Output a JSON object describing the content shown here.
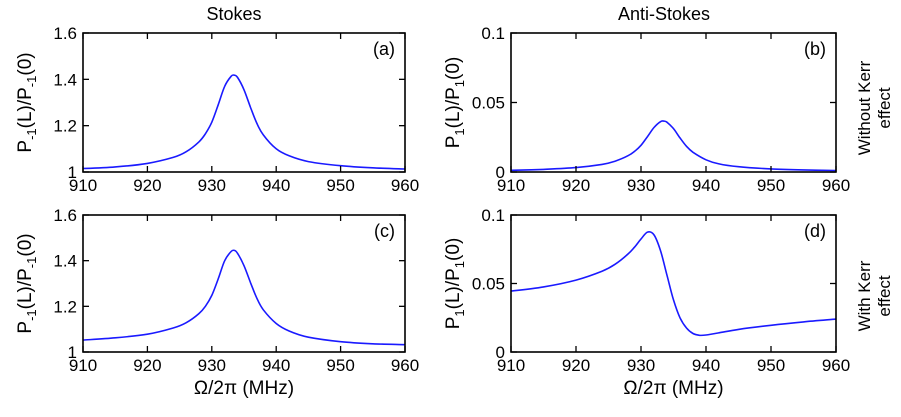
{
  "figure": {
    "column_titles": [
      "Stokes",
      "Anti-Stokes"
    ],
    "row_labels": [
      [
        "Without Kerr",
        "effect"
      ],
      [
        "With Kerr",
        "effect"
      ]
    ],
    "colors": {
      "curve": "#1a1aff",
      "axes": "#000000",
      "background": "#ffffff"
    }
  },
  "chart_data": [
    {
      "type": "line",
      "panel_label": "(a)",
      "xlabel": "",
      "ylabel": {
        "base": "P",
        "sub1": "-1",
        "mid": "(L)/P",
        "sub2": "-1",
        "end": "(0)"
      },
      "xlim": [
        910,
        960
      ],
      "ylim": [
        1,
        1.6
      ],
      "xticks": [
        910,
        920,
        930,
        940,
        950,
        960
      ],
      "xtick_labels": [
        "910",
        "920",
        "930",
        "940",
        "950",
        "960"
      ],
      "yticks": [
        1,
        1.2,
        1.4,
        1.6
      ],
      "ytick_labels": [
        "1",
        "1.2",
        "1.4",
        "1.6"
      ],
      "grid": false,
      "series": [
        {
          "x": [
            910,
            915,
            920,
            924,
            926,
            928,
            929,
            930,
            931,
            932,
            933,
            933.5,
            934,
            935,
            936,
            937,
            938,
            940,
            942,
            945,
            950,
            955,
            960
          ],
          "y": [
            1.015,
            1.022,
            1.037,
            1.063,
            1.087,
            1.13,
            1.165,
            1.215,
            1.29,
            1.37,
            1.413,
            1.418,
            1.408,
            1.355,
            1.28,
            1.21,
            1.16,
            1.1,
            1.07,
            1.045,
            1.027,
            1.018,
            1.013
          ]
        }
      ]
    },
    {
      "type": "line",
      "panel_label": "(b)",
      "xlabel": "",
      "ylabel": {
        "base": "P",
        "sub1": "1",
        "mid": "(L)/P",
        "sub2": "1",
        "end": "(0)"
      },
      "xlim": [
        910,
        960
      ],
      "ylim": [
        0,
        0.1
      ],
      "xticks": [
        910,
        920,
        930,
        940,
        950,
        960
      ],
      "xtick_labels": [
        "910",
        "920",
        "930",
        "940",
        "950",
        "960"
      ],
      "yticks": [
        0,
        0.05,
        0.1
      ],
      "ytick_labels": [
        "0",
        "0.05",
        "0.1"
      ],
      "grid": false,
      "series": [
        {
          "x": [
            910,
            915,
            920,
            924,
            926,
            928,
            929,
            930,
            931,
            932,
            933,
            933.5,
            934,
            935,
            936,
            937,
            938,
            940,
            942,
            945,
            950,
            955,
            960
          ],
          "y": [
            0.0012,
            0.0019,
            0.0032,
            0.0055,
            0.0078,
            0.0117,
            0.0148,
            0.0192,
            0.0255,
            0.032,
            0.0362,
            0.0366,
            0.0358,
            0.0312,
            0.0245,
            0.0185,
            0.0142,
            0.0088,
            0.0058,
            0.0038,
            0.0022,
            0.0015,
            0.0011
          ]
        }
      ]
    },
    {
      "type": "line",
      "panel_label": "(c)",
      "xlabel": "Ω/2π (MHz)",
      "ylabel": {
        "base": "P",
        "sub1": "-1",
        "mid": "(L)/P",
        "sub2": "-1",
        "end": "(0)"
      },
      "xlim": [
        910,
        960
      ],
      "ylim": [
        1,
        1.6
      ],
      "xticks": [
        910,
        920,
        930,
        940,
        950,
        960
      ],
      "xtick_labels": [
        "910",
        "920",
        "930",
        "940",
        "950",
        "960"
      ],
      "yticks": [
        1,
        1.2,
        1.4,
        1.6
      ],
      "ytick_labels": [
        "1",
        "1.2",
        "1.4",
        "1.6"
      ],
      "grid": false,
      "series": [
        {
          "x": [
            910,
            915,
            920,
            924,
            926,
            928,
            929,
            930,
            931,
            932,
            933,
            933.5,
            934,
            935,
            936,
            937,
            938,
            940,
            942,
            945,
            950,
            955,
            960
          ],
          "y": [
            1.052,
            1.062,
            1.078,
            1.105,
            1.128,
            1.168,
            1.2,
            1.248,
            1.32,
            1.4,
            1.44,
            1.445,
            1.432,
            1.378,
            1.305,
            1.235,
            1.185,
            1.125,
            1.092,
            1.065,
            1.045,
            1.036,
            1.032
          ]
        }
      ]
    },
    {
      "type": "line",
      "panel_label": "(d)",
      "xlabel": "Ω/2π (MHz)",
      "ylabel": {
        "base": "P",
        "sub1": "1",
        "mid": "(L)/P",
        "sub2": "1",
        "end": "(0)"
      },
      "xlim": [
        910,
        960
      ],
      "ylim": [
        0,
        0.1
      ],
      "xticks": [
        910,
        920,
        930,
        940,
        950,
        960
      ],
      "xtick_labels": [
        "910",
        "920",
        "930",
        "940",
        "950",
        "960"
      ],
      "yticks": [
        0,
        0.05,
        0.1
      ],
      "ytick_labels": [
        "0",
        "0.05",
        "0.1"
      ],
      "grid": false,
      "series": [
        {
          "x": [
            910,
            915,
            920,
            924,
            926,
            928,
            929,
            930,
            931,
            932,
            933,
            934,
            935,
            936,
            937,
            938,
            939,
            940,
            942,
            945,
            950,
            955,
            960
          ],
          "y": [
            0.0445,
            0.0475,
            0.0525,
            0.059,
            0.064,
            0.0715,
            0.0765,
            0.0825,
            0.0875,
            0.0855,
            0.074,
            0.056,
            0.038,
            0.025,
            0.0175,
            0.0135,
            0.0122,
            0.0124,
            0.014,
            0.0165,
            0.0195,
            0.022,
            0.024
          ]
        }
      ]
    }
  ]
}
